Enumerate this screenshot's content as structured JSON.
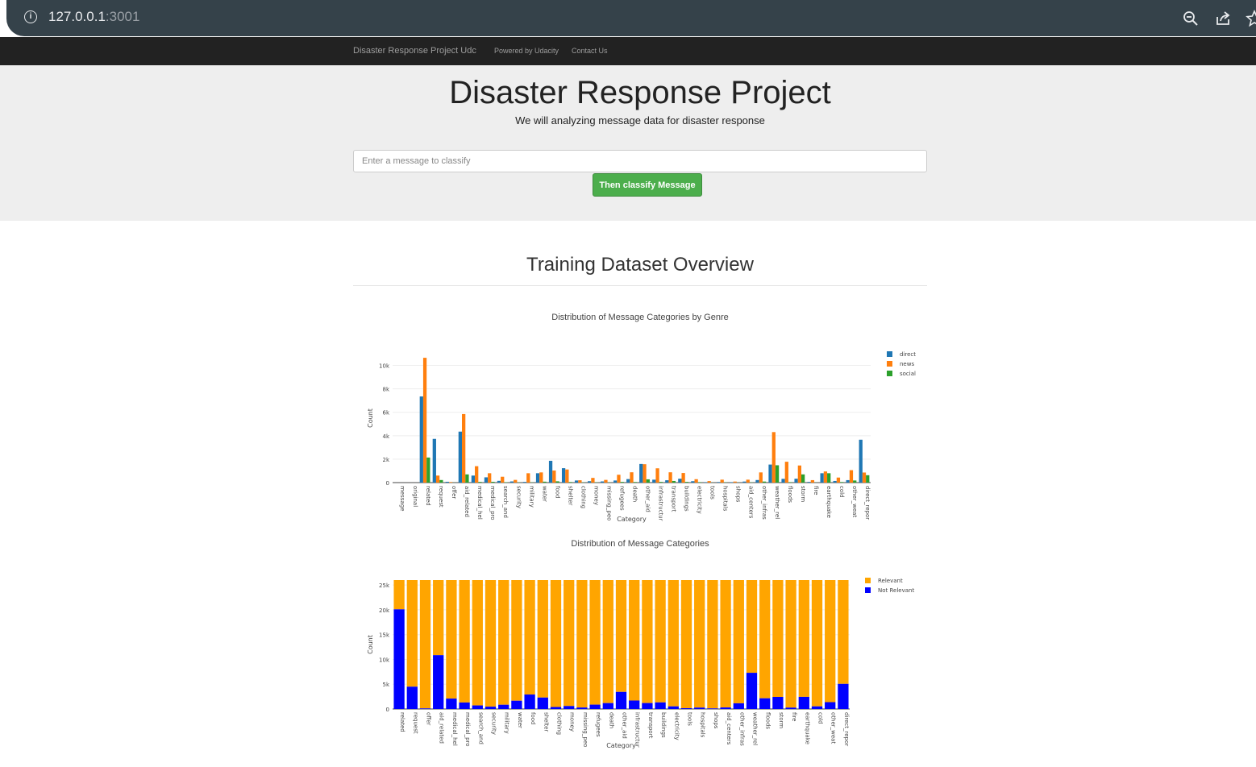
{
  "browser": {
    "url_host": "127.0.0.1",
    "url_port": ":3001",
    "info_icon": "info-icon",
    "zoom_icon": "zoom-icon",
    "share_icon": "share-icon",
    "star_icon": "star-icon"
  },
  "navbar": {
    "brand": "Disaster Response Project Udc",
    "links": [
      "Powered by Udacity",
      "Contact Us"
    ]
  },
  "jumbotron": {
    "title": "Disaster Response Project",
    "subtitle": "We will analyzing message data for disaster response",
    "input_placeholder": "Enter a message to classify",
    "button_label": "Then classify Message",
    "button_color": "#4cae4c"
  },
  "section": {
    "title": "Training Dataset Overview"
  },
  "chart_data": [
    {
      "type": "bar",
      "title": "Distribution of Message Categories by Genre",
      "xlabel": "Category",
      "ylabel": "Count",
      "ylim": [
        0,
        11000
      ],
      "yticks": [
        "0",
        "2k",
        "4k",
        "6k",
        "8k",
        "10k"
      ],
      "grid": true,
      "legend": "top-right",
      "categories": [
        "message",
        "original",
        "related",
        "request",
        "offer",
        "aid_related",
        "medical_hel",
        "medical_pro",
        "search_and",
        "security",
        "military",
        "water",
        "food",
        "shelter",
        "clothing",
        "money",
        "missing_peo",
        "refugees",
        "death",
        "other_aid",
        "infrastructur",
        "transport",
        "buildings",
        "electricity",
        "tools",
        "hospitals",
        "shops",
        "aid_centers",
        "other_infras",
        "weather_rel",
        "floods",
        "storm",
        "fire",
        "earthquake",
        "cold",
        "other_weat",
        "direct_repor"
      ],
      "series": [
        {
          "name": "direct",
          "color": "#1f77b4",
          "values": [
            0,
            0,
            7350,
            3730,
            70,
            4350,
            600,
            450,
            150,
            100,
            60,
            800,
            1860,
            1230,
            180,
            120,
            100,
            180,
            300,
            1590,
            250,
            200,
            330,
            120,
            40,
            50,
            40,
            90,
            220,
            1540,
            320,
            330,
            60,
            800,
            140,
            210,
            3660
          ]
        },
        {
          "name": "news",
          "color": "#ff7f0e",
          "values": [
            0,
            0,
            10650,
            600,
            50,
            5850,
            1400,
            800,
            500,
            230,
            800,
            870,
            1030,
            1120,
            200,
            400,
            230,
            670,
            880,
            1570,
            1220,
            880,
            820,
            290,
            130,
            250,
            90,
            250,
            870,
            4310,
            1780,
            1460,
            210,
            950,
            430,
            1060,
            860
          ]
        },
        {
          "name": "social",
          "color": "#2ca02c",
          "values": [
            0,
            0,
            2140,
            220,
            10,
            700,
            60,
            70,
            30,
            20,
            20,
            80,
            110,
            50,
            20,
            20,
            20,
            60,
            50,
            280,
            60,
            140,
            60,
            40,
            10,
            20,
            10,
            20,
            90,
            1480,
            40,
            700,
            10,
            800,
            50,
            180,
            630
          ]
        }
      ]
    },
    {
      "type": "bar",
      "title": "Distribution of Message Categories",
      "xlabel": "Category",
      "ylabel": "Count",
      "ylim": [
        0,
        26000
      ],
      "yticks": [
        "0",
        "5k",
        "10k",
        "15k",
        "20k",
        "25k"
      ],
      "grid": true,
      "legend": "top-right",
      "stacked": true,
      "total": 26000,
      "categories": [
        "related",
        "request",
        "offer",
        "aid_related",
        "medical_hel",
        "medical_pro",
        "search_and",
        "security",
        "military",
        "water",
        "food",
        "shelter",
        "clothing",
        "money",
        "missing_peo",
        "refugees",
        "death",
        "other_aid",
        "infrastructur",
        "transport",
        "buildings",
        "electricity",
        "tools",
        "hospitals",
        "shops",
        "aid_centers",
        "other_infras",
        "weather_rel",
        "floods",
        "storm",
        "fire",
        "earthquake",
        "cold",
        "other_weat",
        "direct_repor"
      ],
      "series": [
        {
          "name": "Relevant",
          "color": "#ffa500"
        },
        {
          "name": "Not Relevant",
          "color": "#0000ff",
          "values": [
            20100,
            4500,
            120,
            10860,
            2100,
            1310,
            720,
            470,
            860,
            1670,
            2920,
            2310,
            400,
            600,
            300,
            880,
            1190,
            3450,
            1710,
            1200,
            1330,
            530,
            160,
            280,
            120,
            310,
            1150,
            7300,
            2160,
            2440,
            280,
            2450,
            530,
            1380,
            5070
          ]
        }
      ]
    }
  ]
}
